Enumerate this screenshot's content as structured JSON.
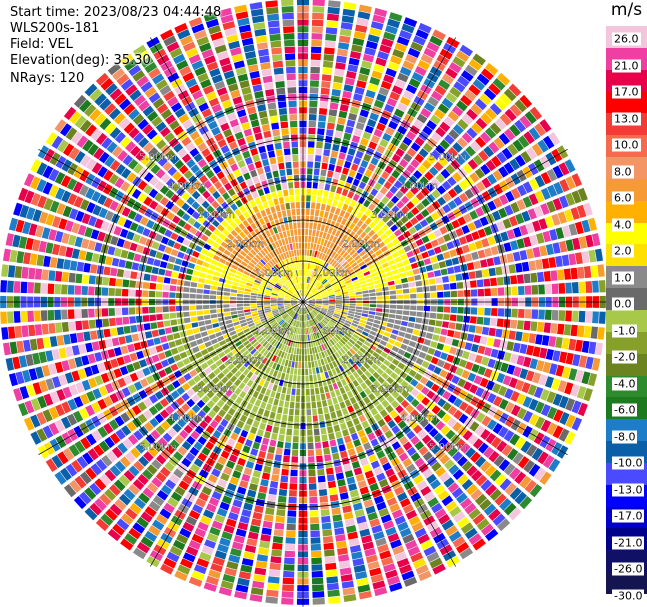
{
  "header": {
    "start_time": "Start time: 2023/08/23 04:44:48",
    "instrument": "WLS200s-181",
    "field": "Field: VEL",
    "elevation": "Elevation(deg): 35.30",
    "nrays": "NRays: 120"
  },
  "colorbar": {
    "unit": "m/s",
    "segments": [
      {
        "color": "#f4c6de"
      },
      {
        "color": "#ef3fa3"
      },
      {
        "color": "#e8004a"
      },
      {
        "color": "#ff0000"
      },
      {
        "color": "#f43b36"
      },
      {
        "color": "#f86a4d"
      },
      {
        "color": "#f49566"
      },
      {
        "color": "#f69a35"
      },
      {
        "color": "#ffb000"
      },
      {
        "color": "#ffff00"
      },
      {
        "color": "#ffe000"
      },
      {
        "color": "#8a8a8a"
      },
      {
        "color": "#6a6a6a"
      },
      {
        "color": "#a8c84a"
      },
      {
        "color": "#86a02a"
      },
      {
        "color": "#6c8420"
      },
      {
        "color": "#2e8b2e"
      },
      {
        "color": "#1e7a1e"
      },
      {
        "color": "#1e7dc8"
      },
      {
        "color": "#0a5fa8"
      },
      {
        "color": "#4a4aff"
      },
      {
        "color": "#0000ff"
      },
      {
        "color": "#0000c8"
      },
      {
        "color": "#00008a"
      },
      {
        "color": "#101066"
      },
      {
        "color": "#141450"
      }
    ],
    "ticks": [
      "26.0",
      "21.0",
      "17.0",
      "13.0",
      "10.0",
      "8.0",
      "6.0",
      "4.0",
      "2.0",
      "1.0",
      "0.0",
      "-1.0",
      "-2.0",
      "-4.0",
      "-6.0",
      "-8.0",
      "-10.0",
      "-13.0",
      "-17.0",
      "-21.0",
      "-26.0",
      "-30.0"
    ]
  },
  "chart_data": {
    "type": "heatmap",
    "projection": "polar-ppi",
    "field": "VEL",
    "units": "m/s",
    "nrays": 120,
    "range_rings_km": [
      1,
      2,
      3,
      4,
      5
    ],
    "range_ring_labels": [
      "1.00km",
      "2.00km",
      "3.00km",
      "4.00km",
      "5.00km"
    ],
    "azimuth_lines_deg": [
      0,
      30,
      60,
      90,
      120,
      150,
      180,
      210,
      240,
      270,
      300,
      330
    ],
    "vmin": -30,
    "vmax": 30,
    "max_range_km": 7.4,
    "rings_of_data": 44,
    "velocity_regions": [
      {
        "description_az_from_deg": 280,
        "az_to_deg": 80,
        "range_km": [
          0.1,
          2.8
        ],
        "velocity_ms": 1.5
      },
      {
        "description_az_from_deg": 295,
        "az_to_deg": 60,
        "range_km": [
          1.2,
          2.5
        ],
        "velocity_ms": 4.5
      },
      {
        "description_az_from_deg": 95,
        "az_to_deg": 265,
        "range_km": [
          0.1,
          3.4
        ],
        "velocity_ms": -4.0
      },
      {
        "description_az_from_deg": 80,
        "az_to_deg": 120,
        "range_km": [
          0.1,
          3.2
        ],
        "velocity_ms": -0.3
      },
      {
        "description_az_from_deg": 245,
        "az_to_deg": 280,
        "range_km": [
          0.1,
          3.0
        ],
        "velocity_ms": -0.3
      }
    ],
    "outer_region": "noise, all velocities"
  }
}
